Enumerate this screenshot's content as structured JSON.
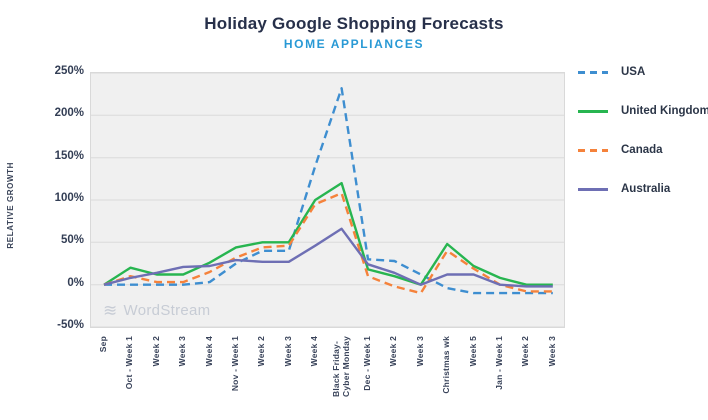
{
  "header": {
    "title": "Holiday Google Shopping Forecasts",
    "subtitle": "HOME APPLIANCES"
  },
  "watermark": {
    "icon": "wordstream-waves-icon",
    "glyph": "≋",
    "text": "WordStream"
  },
  "chart_data": {
    "type": "line",
    "title": "Holiday Google Shopping Forecasts",
    "subtitle": "HOME APPLIANCES",
    "ylabel": "RELATIVE GROWTH",
    "xlabel": "",
    "ylim": [
      -50,
      250
    ],
    "y_ticks": [
      "250%",
      "200%",
      "150%",
      "100%",
      "50%",
      "0%",
      "-50%"
    ],
    "grid": true,
    "legend_position": "right",
    "categories": [
      "Sep",
      "Oct - Week 1",
      "Week 2",
      "Week 3",
      "Week 4",
      "Nov - Week 1",
      "Week 2",
      "Week 3",
      "Week 4",
      "Black Friday-\nCyber Monday",
      "Dec - Week 1",
      "Week 2",
      "Week 3",
      "Christmas wk",
      "Week 5",
      "Jan - Week 1",
      "Week 2",
      "Week 3"
    ],
    "series": [
      {
        "name": "USA",
        "color": "#3e8ed0",
        "dashed": true,
        "values": [
          0,
          0,
          0,
          0,
          3,
          25,
          40,
          40,
          140,
          232,
          30,
          28,
          12,
          -4,
          -10,
          -10,
          -10,
          -10
        ]
      },
      {
        "name": "United Kingdom",
        "color": "#27b550",
        "dashed": false,
        "values": [
          0,
          20,
          12,
          12,
          26,
          44,
          50,
          50,
          100,
          120,
          18,
          10,
          0,
          48,
          22,
          8,
          0,
          0
        ]
      },
      {
        "name": "Canada",
        "color": "#f5823b",
        "dashed": true,
        "values": [
          0,
          10,
          3,
          3,
          15,
          32,
          44,
          46,
          95,
          108,
          10,
          -2,
          -10,
          40,
          19,
          0,
          -8,
          -8
        ]
      },
      {
        "name": "Australia",
        "color": "#6e6fb4",
        "dashed": false,
        "values": [
          0,
          8,
          14,
          21,
          22,
          29,
          27,
          27,
          46,
          66,
          24,
          14,
          0,
          12,
          12,
          0,
          -2,
          -2
        ]
      }
    ]
  }
}
